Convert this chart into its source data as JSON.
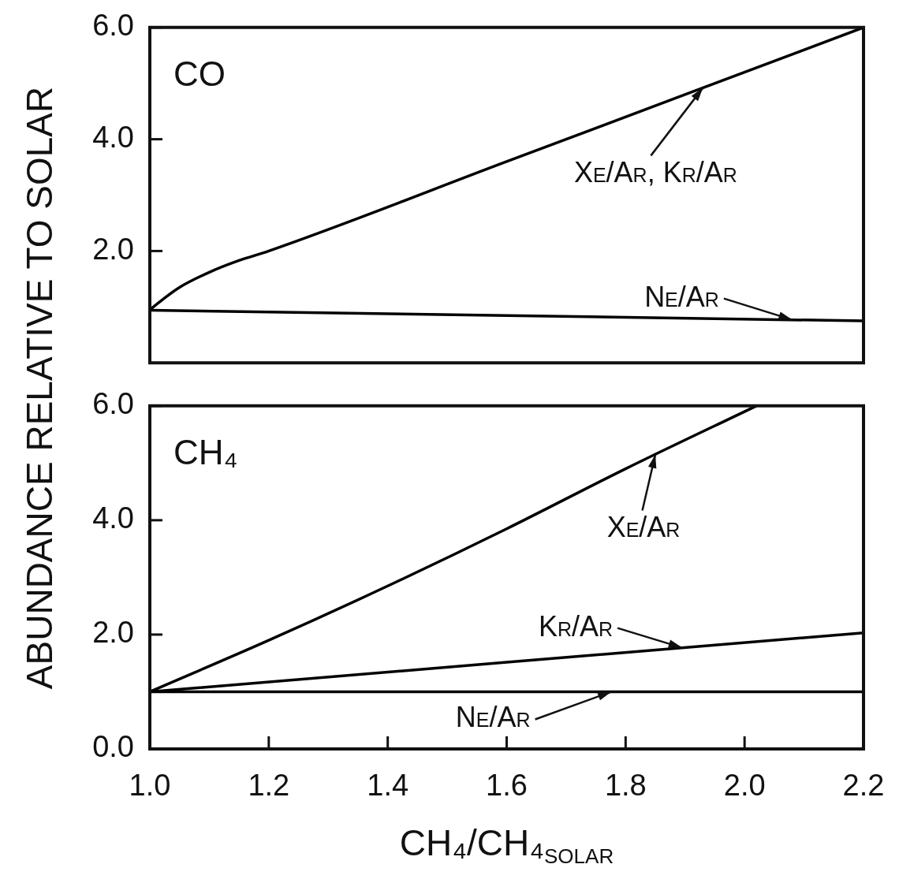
{
  "chart_data": [
    {
      "type": "line",
      "xlim": [
        1.0,
        2.2
      ],
      "ylim": [
        0,
        6
      ],
      "yticks": [
        {
          "value": 2,
          "label": "2.0"
        },
        {
          "value": 4,
          "label": "4.0"
        },
        {
          "value": 6,
          "label": "6.0"
        }
      ],
      "tick_labels": "y",
      "grid": false,
      "legend": false,
      "marker": "none",
      "line_style": "solid",
      "series": [
        {
          "color": "#000000",
          "x": [
            1.0,
            1.02,
            1.05,
            1.1,
            1.15,
            1.2,
            1.6,
            2.2
          ],
          "values": [
            0.95,
            1.12,
            1.35,
            1.62,
            1.83,
            2.0,
            3.6,
            6.0
          ]
        },
        {
          "color": "#000000",
          "x": [
            1.0,
            2.2
          ],
          "values": [
            0.94,
            0.75
          ]
        }
      ],
      "annotations": [
        "CO",
        {
          "text": "Xe/Ar, Kr/Ar",
          "x": 1.93,
          "y": 4.92
        },
        {
          "text": "Ne/Ar",
          "x": 2.08,
          "y": 0.77
        }
      ]
    },
    {
      "type": "line",
      "xlim": [
        1.0,
        2.2
      ],
      "ylim": [
        0,
        6
      ],
      "xticks": [
        {
          "value": 1.0,
          "label": "1.0"
        },
        {
          "value": 1.2,
          "label": "1.2"
        },
        {
          "value": 1.4,
          "label": "1.4"
        },
        {
          "value": 1.6,
          "label": "1.6"
        },
        {
          "value": 1.8,
          "label": "1.8"
        },
        {
          "value": 2.0,
          "label": "2.0"
        },
        {
          "value": 2.2,
          "label": "2.2"
        }
      ],
      "yticks": [
        {
          "value": 0,
          "label": "0.0"
        },
        {
          "value": 2,
          "label": "2.0"
        },
        {
          "value": 4,
          "label": "4.0"
        },
        {
          "value": 6,
          "label": "6.0"
        }
      ],
      "xlabel": "CH₄/CH₄$_{SOLAR}$",
      "ylabel": "ABUNDANCE RELATIVE TO SOLAR",
      "grid": false,
      "legend": false,
      "marker": "none",
      "line_style": "solid",
      "series": [
        {
          "color": "#000000",
          "x": [
            1.0,
            1.2,
            1.4,
            1.6,
            1.8,
            2.02
          ],
          "values": [
            1.0,
            1.9,
            2.85,
            3.85,
            4.9,
            6.0
          ]
        },
        {
          "color": "#000000",
          "x": [
            1.0,
            2.2
          ],
          "values": [
            1.0,
            2.03
          ]
        },
        {
          "color": "#000000",
          "x": [
            1.0,
            2.2
          ],
          "values": [
            1.0,
            1.0
          ]
        }
      ],
      "annotations": [
        "CH₄",
        {
          "text": "Xe/Ar",
          "x": 1.85,
          "y": 5.15
        },
        {
          "text": "Kr/Ar",
          "x": 1.895,
          "y": 1.77
        },
        {
          "text": "Ne/Ar",
          "x": 1.776,
          "y": 1.0
        }
      ]
    }
  ]
}
